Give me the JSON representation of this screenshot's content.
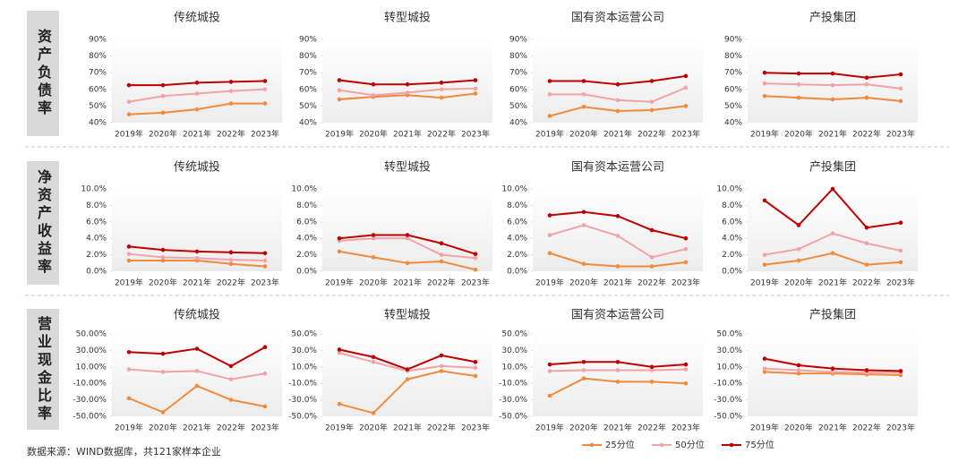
{
  "row_labels": [
    "资产负债率",
    "净资产收益率",
    "营业现金比率"
  ],
  "source": "数据来源：WIND数据库，共121家样本企业",
  "chart_data": [
    {
      "type": "line",
      "title": "传统城投",
      "categories": [
        "2019年",
        "2020年",
        "2021年",
        "2022年",
        "2023年"
      ],
      "series": [
        {
          "name": "25分位",
          "color": "#f08a3c",
          "values": [
            45,
            46,
            48,
            51.5,
            51.5
          ]
        },
        {
          "name": "50分位",
          "color": "#f2a3a8",
          "values": [
            52.5,
            56,
            57.5,
            59,
            60
          ]
        },
        {
          "name": "75分位",
          "color": "#c00000",
          "values": [
            62.5,
            62.5,
            64,
            64.5,
            65
          ]
        }
      ],
      "ylim": [
        40,
        90
      ],
      "yticks": [
        {
          "value": 40,
          "label": "40%"
        },
        {
          "value": 50,
          "label": "50%"
        },
        {
          "value": 60,
          "label": "60%"
        },
        {
          "value": 70,
          "label": "70%"
        },
        {
          "value": 80,
          "label": "80%"
        },
        {
          "value": 90,
          "label": "90%"
        }
      ]
    },
    {
      "type": "line",
      "title": "转型城投",
      "categories": [
        "2019年",
        "2020年",
        "2021年",
        "2022年",
        "2023年"
      ],
      "series": [
        {
          "name": "25分位",
          "color": "#f08a3c",
          "values": [
            54,
            55.5,
            56.5,
            55,
            57.5
          ]
        },
        {
          "name": "50分位",
          "color": "#f2a3a8",
          "values": [
            59.5,
            56.5,
            58,
            60,
            60.5
          ]
        },
        {
          "name": "75分位",
          "color": "#c00000",
          "values": [
            65.5,
            63,
            63,
            64,
            65.5
          ]
        }
      ],
      "ylim": [
        40,
        90
      ],
      "yticks": [
        {
          "value": 40,
          "label": "40%"
        },
        {
          "value": 50,
          "label": "50%"
        },
        {
          "value": 60,
          "label": "60%"
        },
        {
          "value": 70,
          "label": "70%"
        },
        {
          "value": 80,
          "label": "80%"
        },
        {
          "value": 90,
          "label": "90%"
        }
      ]
    },
    {
      "type": "line",
      "title": "国有资本运营公司",
      "categories": [
        "2019年",
        "2020年",
        "2021年",
        "2022年",
        "2023年"
      ],
      "series": [
        {
          "name": "25分位",
          "color": "#f08a3c",
          "values": [
            44,
            49.5,
            47,
            47.5,
            50
          ]
        },
        {
          "name": "50分位",
          "color": "#f2a3a8",
          "values": [
            57,
            57,
            53.5,
            52.5,
            61
          ]
        },
        {
          "name": "75分位",
          "color": "#c00000",
          "values": [
            65,
            65,
            63,
            65,
            68
          ]
        }
      ],
      "ylim": [
        40,
        90
      ],
      "yticks": [
        {
          "value": 40,
          "label": "40%"
        },
        {
          "value": 50,
          "label": "50%"
        },
        {
          "value": 60,
          "label": "60%"
        },
        {
          "value": 70,
          "label": "70%"
        },
        {
          "value": 80,
          "label": "80%"
        },
        {
          "value": 90,
          "label": "90%"
        }
      ]
    },
    {
      "type": "line",
      "title": "产投集团",
      "categories": [
        "2019年",
        "2020年",
        "2021年",
        "2022年",
        "2023年"
      ],
      "series": [
        {
          "name": "25分位",
          "color": "#f08a3c",
          "values": [
            56,
            55,
            54,
            55,
            53
          ]
        },
        {
          "name": "50分位",
          "color": "#f2a3a8",
          "values": [
            63.5,
            63,
            62.5,
            63,
            60.5
          ]
        },
        {
          "name": "75分位",
          "color": "#c00000",
          "values": [
            70,
            69.5,
            69.5,
            67,
            69
          ]
        }
      ],
      "ylim": [
        40,
        90
      ],
      "yticks": [
        {
          "value": 40,
          "label": "40%"
        },
        {
          "value": 50,
          "label": "50%"
        },
        {
          "value": 60,
          "label": "60%"
        },
        {
          "value": 70,
          "label": "70%"
        },
        {
          "value": 80,
          "label": "80%"
        },
        {
          "value": 90,
          "label": "90%"
        }
      ]
    },
    {
      "type": "line",
      "title": "传统城投",
      "categories": [
        "2019年",
        "2020年",
        "2021年",
        "2022年",
        "2023年"
      ],
      "series": [
        {
          "name": "25分位",
          "color": "#f08a3c",
          "values": [
            1.3,
            1.3,
            1.3,
            0.9,
            0.6
          ]
        },
        {
          "name": "50分位",
          "color": "#f2a3a8",
          "values": [
            2.1,
            1.7,
            1.6,
            1.4,
            1.3
          ]
        },
        {
          "name": "75分位",
          "color": "#c00000",
          "values": [
            3.0,
            2.6,
            2.4,
            2.3,
            2.2
          ]
        }
      ],
      "ylim": [
        0,
        10
      ],
      "yticks": [
        {
          "value": 0,
          "label": "0.0%"
        },
        {
          "value": 2,
          "label": "2.0%"
        },
        {
          "value": 4,
          "label": "4.0%"
        },
        {
          "value": 6,
          "label": "6.0%"
        },
        {
          "value": 8,
          "label": "8.0%"
        },
        {
          "value": 10,
          "label": "10.0%"
        }
      ]
    },
    {
      "type": "line",
      "title": "转型城投",
      "categories": [
        "2019年",
        "2020年",
        "2021年",
        "2022年",
        "2023年"
      ],
      "series": [
        {
          "name": "25分位",
          "color": "#f08a3c",
          "values": [
            2.4,
            1.7,
            1.0,
            1.2,
            0.2
          ]
        },
        {
          "name": "50分位",
          "color": "#f2a3a8",
          "values": [
            3.7,
            4.0,
            4.0,
            2.0,
            1.6
          ]
        },
        {
          "name": "75分位",
          "color": "#c00000",
          "values": [
            4.0,
            4.4,
            4.4,
            3.4,
            2.1
          ]
        }
      ],
      "ylim": [
        0,
        10
      ],
      "yticks": [
        {
          "value": 0,
          "label": "0.0%"
        },
        {
          "value": 2,
          "label": "2.0%"
        },
        {
          "value": 4,
          "label": "4.0%"
        },
        {
          "value": 6,
          "label": "6.0%"
        },
        {
          "value": 8,
          "label": "8.0%"
        },
        {
          "value": 10,
          "label": "10.0%"
        }
      ]
    },
    {
      "type": "line",
      "title": "国有资本运营公司",
      "categories": [
        "2019年",
        "2020年",
        "2021年",
        "2022年",
        "2023年"
      ],
      "series": [
        {
          "name": "25分位",
          "color": "#f08a3c",
          "values": [
            2.2,
            0.9,
            0.6,
            0.6,
            1.1
          ]
        },
        {
          "name": "50分位",
          "color": "#f2a3a8",
          "values": [
            4.4,
            5.6,
            4.3,
            1.7,
            2.7
          ]
        },
        {
          "name": "75分位",
          "color": "#c00000",
          "values": [
            6.8,
            7.2,
            6.7,
            5.0,
            4.0
          ]
        }
      ],
      "ylim": [
        0,
        10
      ],
      "yticks": [
        {
          "value": 0,
          "label": "0.0%"
        },
        {
          "value": 2,
          "label": "2.0%"
        },
        {
          "value": 4,
          "label": "4.0%"
        },
        {
          "value": 6,
          "label": "6.0%"
        },
        {
          "value": 8,
          "label": "8.0%"
        },
        {
          "value": 10,
          "label": "10.0%"
        }
      ]
    },
    {
      "type": "line",
      "title": "产投集团",
      "categories": [
        "2019年",
        "2020年",
        "2021年",
        "2022年",
        "2023年"
      ],
      "series": [
        {
          "name": "25分位",
          "color": "#f08a3c",
          "values": [
            0.8,
            1.3,
            2.2,
            0.8,
            1.1
          ]
        },
        {
          "name": "50分位",
          "color": "#f2a3a8",
          "values": [
            2.0,
            2.7,
            4.6,
            3.4,
            2.5
          ]
        },
        {
          "name": "75分位",
          "color": "#c00000",
          "values": [
            8.6,
            5.6,
            10.0,
            5.3,
            5.9
          ]
        }
      ],
      "ylim": [
        0,
        10
      ],
      "yticks": [
        {
          "value": 0,
          "label": "0.0%"
        },
        {
          "value": 2,
          "label": "2.0%"
        },
        {
          "value": 4,
          "label": "4.0%"
        },
        {
          "value": 6,
          "label": "6.0%"
        },
        {
          "value": 8,
          "label": "8.0%"
        },
        {
          "value": 10,
          "label": "10.0%"
        }
      ]
    },
    {
      "type": "line",
      "title": "传统城投",
      "categories": [
        "2019年",
        "2020年",
        "2021年",
        "2022年",
        "2023年"
      ],
      "series": [
        {
          "name": "25分位",
          "color": "#f08a3c",
          "values": [
            -28,
            -45,
            -13,
            -30,
            -38
          ]
        },
        {
          "name": "50分位",
          "color": "#f2a3a8",
          "values": [
            7,
            4,
            5,
            -5,
            2
          ]
        },
        {
          "name": "75分位",
          "color": "#c00000",
          "values": [
            28,
            26,
            32,
            11,
            34
          ]
        }
      ],
      "ylim": [
        -50,
        50
      ],
      "yticks": [
        {
          "value": -50,
          "label": "-50.00%"
        },
        {
          "value": -30,
          "label": "-30.00%"
        },
        {
          "value": -10,
          "label": "-10.00%"
        },
        {
          "value": 10,
          "label": "10.00%"
        },
        {
          "value": 30,
          "label": "30.00%"
        },
        {
          "value": 50,
          "label": "50.00%"
        }
      ]
    },
    {
      "type": "line",
      "title": "转型城投",
      "categories": [
        "2019年",
        "2020年",
        "2021年",
        "2022年",
        "2023年"
      ],
      "series": [
        {
          "name": "25分位",
          "color": "#f08a3c",
          "values": [
            -35,
            -46,
            -5,
            5,
            -1
          ]
        },
        {
          "name": "50分位",
          "color": "#f2a3a8",
          "values": [
            27,
            16,
            5,
            11,
            9
          ]
        },
        {
          "name": "75分位",
          "color": "#c00000",
          "values": [
            31,
            22,
            7,
            24,
            16
          ]
        }
      ],
      "ylim": [
        -50,
        50
      ],
      "yticks": [
        {
          "value": -50,
          "label": "-50.0%"
        },
        {
          "value": -30,
          "label": "-30.0%"
        },
        {
          "value": -10,
          "label": "-10.0%"
        },
        {
          "value": 10,
          "label": "10.0%"
        },
        {
          "value": 30,
          "label": "30.0%"
        },
        {
          "value": 50,
          "label": "50.0%"
        }
      ]
    },
    {
      "type": "line",
      "title": "国有资本运营公司",
      "categories": [
        "2019年",
        "2020年",
        "2021年",
        "2022年",
        "2023年"
      ],
      "series": [
        {
          "name": "25分位",
          "color": "#f08a3c",
          "values": [
            -25,
            -4,
            -8,
            -8,
            -10
          ]
        },
        {
          "name": "50分位",
          "color": "#f2a3a8",
          "values": [
            5,
            6,
            6,
            6,
            7
          ]
        },
        {
          "name": "75分位",
          "color": "#c00000",
          "values": [
            13,
            16,
            16,
            10,
            13
          ]
        }
      ],
      "ylim": [
        -50,
        50
      ],
      "yticks": [
        {
          "value": -50,
          "label": "-50.0%"
        },
        {
          "value": -30,
          "label": "-30.0%"
        },
        {
          "value": -10,
          "label": "-10.0%"
        },
        {
          "value": 10,
          "label": "10.0%"
        },
        {
          "value": 30,
          "label": "30.0%"
        },
        {
          "value": 50,
          "label": "50.0%"
        }
      ]
    },
    {
      "type": "line",
      "title": "产投集团",
      "categories": [
        "2019年",
        "2020年",
        "2021年",
        "2022年",
        "2023年"
      ],
      "series": [
        {
          "name": "25分位",
          "color": "#f08a3c",
          "values": [
            4,
            2,
            2,
            1,
            0
          ]
        },
        {
          "name": "50分位",
          "color": "#f2a3a8",
          "values": [
            8,
            6,
            4,
            3,
            3
          ]
        },
        {
          "name": "75分位",
          "color": "#c00000",
          "values": [
            20,
            12,
            8,
            6,
            5
          ]
        }
      ],
      "ylim": [
        -50,
        50
      ],
      "yticks": [
        {
          "value": -50,
          "label": "-50.0%"
        },
        {
          "value": -30,
          "label": "-30.0%"
        },
        {
          "value": -10,
          "label": "-10.0%"
        },
        {
          "value": 10,
          "label": "10.0%"
        },
        {
          "value": 30,
          "label": "30.0%"
        },
        {
          "value": 50,
          "label": "50.0%"
        }
      ]
    }
  ]
}
